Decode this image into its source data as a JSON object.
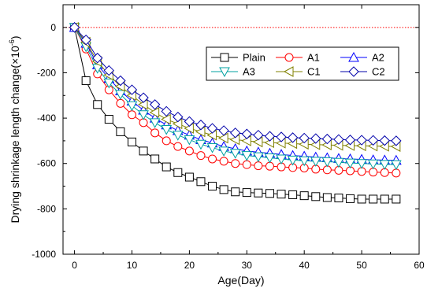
{
  "chart_data": {
    "type": "line",
    "xlabel": "Age(Day)",
    "ylabel_main": "Drying shrinkage length change(×10",
    "ylabel_exponent": "-6",
    "ylabel_close": ")",
    "xlim": [
      -2,
      60
    ],
    "ylim": [
      -1000,
      100
    ],
    "xticks": [
      0,
      10,
      20,
      30,
      40,
      50,
      60
    ],
    "yticks": [
      0,
      -200,
      -400,
      -600,
      -800,
      -1000
    ],
    "reference_line": {
      "y": 0,
      "color": "#ff0000",
      "style": "dotted"
    },
    "legend_position": "upper-right",
    "x": [
      0,
      2,
      4,
      6,
      8,
      10,
      12,
      14,
      16,
      18,
      20,
      22,
      24,
      26,
      28,
      30,
      32,
      34,
      36,
      38,
      40,
      42,
      44,
      46,
      48,
      50,
      52,
      54,
      56
    ],
    "series": [
      {
        "name": "Plain",
        "marker": "square",
        "color": "#000000",
        "values": [
          0,
          -235,
          -340,
          -405,
          -460,
          -505,
          -545,
          -580,
          -615,
          -640,
          -660,
          -680,
          -700,
          -715,
          -725,
          -728,
          -730,
          -732,
          -735,
          -738,
          -742,
          -746,
          -750,
          -752,
          -755,
          -757,
          -757,
          -757,
          -757
        ]
      },
      {
        "name": "A1",
        "marker": "circle",
        "color": "#ff0000",
        "values": [
          0,
          -95,
          -205,
          -275,
          -335,
          -385,
          -420,
          -465,
          -500,
          -525,
          -545,
          -565,
          -580,
          -590,
          -600,
          -605,
          -610,
          -612,
          -615,
          -618,
          -620,
          -625,
          -628,
          -630,
          -632,
          -635,
          -638,
          -640,
          -642
        ]
      },
      {
        "name": "A2",
        "marker": "triangle-up",
        "color": "#0000ff",
        "values": [
          0,
          -70,
          -165,
          -225,
          -280,
          -325,
          -365,
          -400,
          -430,
          -455,
          -475,
          -495,
          -510,
          -525,
          -535,
          -545,
          -550,
          -555,
          -560,
          -565,
          -568,
          -572,
          -575,
          -578,
          -580,
          -582,
          -584,
          -585,
          -586
        ]
      },
      {
        "name": "A3",
        "marker": "triangle-down",
        "color": "#00a0a0",
        "values": [
          0,
          -85,
          -180,
          -245,
          -295,
          -345,
          -385,
          -420,
          -450,
          -475,
          -495,
          -515,
          -530,
          -545,
          -555,
          -565,
          -570,
          -575,
          -580,
          -585,
          -588,
          -590,
          -592,
          -595,
          -598,
          -600,
          -602,
          -604,
          -605
        ]
      },
      {
        "name": "C1",
        "marker": "triangle-left",
        "color": "#808000",
        "values": [
          0,
          -65,
          -150,
          -210,
          -260,
          -300,
          -340,
          -375,
          -405,
          -425,
          -445,
          -460,
          -475,
          -488,
          -495,
          -500,
          -505,
          -508,
          -510,
          -512,
          -515,
          -517,
          -518,
          -520,
          -521,
          -522,
          -523,
          -524,
          -525
        ]
      },
      {
        "name": "C2",
        "marker": "diamond",
        "color": "#0000aa",
        "values": [
          0,
          -55,
          -135,
          -190,
          -235,
          -275,
          -310,
          -340,
          -370,
          -395,
          -415,
          -430,
          -445,
          -455,
          -465,
          -470,
          -475,
          -480,
          -483,
          -486,
          -488,
          -490,
          -492,
          -494,
          -496,
          -497,
          -498,
          -499,
          -500
        ]
      }
    ]
  }
}
